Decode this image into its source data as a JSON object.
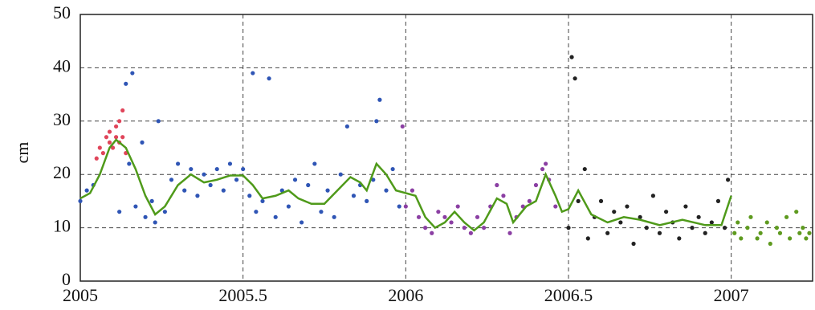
{
  "chart_data": {
    "type": "scatter",
    "ylabel": "cm",
    "xlim": [
      2005,
      2007.25
    ],
    "ylim": [
      0,
      50
    ],
    "xticks": [
      2005,
      2005.5,
      2006,
      2006.5,
      2007
    ],
    "yticks": [
      0,
      10,
      20,
      30,
      40,
      50
    ],
    "grid": true,
    "series": [
      {
        "color": "#e0455a",
        "mode": "markers",
        "x": [
          2005.05,
          2005.06,
          2005.07,
          2005.08,
          2005.09,
          2005.09,
          2005.1,
          2005.11,
          2005.11,
          2005.12,
          2005.12,
          2005.13,
          2005.13,
          2005.14
        ],
        "values": [
          23,
          25,
          24,
          27,
          26,
          28,
          25,
          27,
          29,
          30,
          26,
          32,
          27,
          24
        ]
      },
      {
        "color": "#2f55b5",
        "mode": "markers",
        "x": [
          2005.0,
          2005.02,
          2005.04,
          2005.12,
          2005.14,
          2005.15,
          2005.16,
          2005.17,
          2005.19,
          2005.2,
          2005.22,
          2005.23,
          2005.24,
          2005.26,
          2005.28,
          2005.3,
          2005.32,
          2005.34,
          2005.36,
          2005.38,
          2005.4,
          2005.42,
          2005.44,
          2005.46,
          2005.48,
          2005.5,
          2005.52,
          2005.53,
          2005.54,
          2005.56,
          2005.58,
          2005.6,
          2005.62,
          2005.64,
          2005.66,
          2005.68,
          2005.7,
          2005.72,
          2005.74,
          2005.76,
          2005.78,
          2005.8,
          2005.82,
          2005.84,
          2005.86,
          2005.88,
          2005.9,
          2005.91,
          2005.92,
          2005.94,
          2005.96,
          2005.98
        ],
        "values": [
          15,
          17,
          18,
          13,
          37,
          22,
          39,
          14,
          26,
          12,
          15,
          11,
          30,
          13,
          19,
          22,
          17,
          21,
          16,
          20,
          18,
          21,
          17,
          22,
          19,
          21,
          16,
          39,
          13,
          15,
          38,
          12,
          17,
          14,
          19,
          11,
          18,
          22,
          13,
          17,
          12,
          20,
          29,
          16,
          18,
          15,
          19,
          30,
          34,
          17,
          21,
          14
        ]
      },
      {
        "color": "#8b3fa3",
        "mode": "markers",
        "x": [
          2005.99,
          2006.0,
          2006.02,
          2006.04,
          2006.06,
          2006.08,
          2006.1,
          2006.12,
          2006.14,
          2006.16,
          2006.18,
          2006.2,
          2006.22,
          2006.24,
          2006.26,
          2006.28,
          2006.3,
          2006.32,
          2006.34,
          2006.36,
          2006.38,
          2006.4,
          2006.42,
          2006.43,
          2006.44,
          2006.46
        ],
        "values": [
          29,
          14,
          17,
          12,
          10,
          9,
          13,
          12,
          11,
          14,
          10,
          9,
          12,
          10,
          14,
          18,
          16,
          9,
          12,
          14,
          15,
          18,
          21,
          22,
          19,
          14
        ]
      },
      {
        "color": "#222222",
        "mode": "markers",
        "x": [
          2006.5,
          2006.51,
          2006.52,
          2006.53,
          2006.55,
          2006.56,
          2006.58,
          2006.6,
          2006.62,
          2006.64,
          2006.66,
          2006.68,
          2006.7,
          2006.72,
          2006.74,
          2006.76,
          2006.78,
          2006.8,
          2006.82,
          2006.84,
          2006.86,
          2006.88,
          2006.9,
          2006.92,
          2006.94,
          2006.96,
          2006.98,
          2006.99
        ],
        "values": [
          10,
          42,
          38,
          15,
          21,
          8,
          12,
          15,
          9,
          13,
          11,
          14,
          7,
          12,
          10,
          16,
          9,
          13,
          11,
          8,
          14,
          10,
          12,
          9,
          11,
          15,
          10,
          19
        ]
      },
      {
        "color": "#5e9a1f",
        "mode": "markers",
        "x": [
          2007.01,
          2007.02,
          2007.03,
          2007.05,
          2007.06,
          2007.08,
          2007.09,
          2007.11,
          2007.12,
          2007.14,
          2007.15,
          2007.17,
          2007.18,
          2007.2,
          2007.21,
          2007.22,
          2007.23,
          2007.24
        ],
        "values": [
          9,
          11,
          8,
          10,
          12,
          8,
          9,
          11,
          7,
          10,
          9,
          12,
          8,
          13,
          9,
          10,
          8,
          9
        ]
      },
      {
        "color": "#4f9a1a",
        "mode": "line",
        "x": [
          2005.0,
          2005.03,
          2005.06,
          2005.09,
          2005.11,
          2005.14,
          2005.17,
          2005.2,
          2005.23,
          2005.26,
          2005.3,
          2005.34,
          2005.38,
          2005.42,
          2005.46,
          2005.5,
          2005.53,
          2005.56,
          2005.6,
          2005.64,
          2005.67,
          2005.71,
          2005.75,
          2005.79,
          2005.83,
          2005.86,
          2005.88,
          2005.91,
          2005.94,
          2005.97,
          2006.0,
          2006.03,
          2006.06,
          2006.09,
          2006.12,
          2006.15,
          2006.18,
          2006.21,
          2006.24,
          2006.28,
          2006.31,
          2006.33,
          2006.37,
          2006.4,
          2006.43,
          2006.46,
          2006.48,
          2006.5,
          2006.53,
          2006.57,
          2006.62,
          2006.67,
          2006.72,
          2006.78,
          2006.85,
          2006.92,
          2006.97,
          2007.0
        ],
        "values": [
          15.5,
          16.5,
          20,
          25,
          26.5,
          25,
          21,
          16,
          12.5,
          14,
          18,
          20,
          18.5,
          19,
          19.8,
          19.8,
          18,
          15.5,
          16,
          17,
          15.5,
          14.5,
          14.5,
          17,
          19.5,
          18.5,
          17,
          22,
          20,
          17,
          16.5,
          16,
          12,
          10,
          11,
          13,
          11,
          9.5,
          11,
          15.5,
          14.5,
          11,
          14,
          15,
          20,
          16,
          13,
          13.5,
          17,
          12.5,
          11,
          12,
          11.5,
          10.5,
          11.5,
          10.5,
          10.5,
          16
        ]
      }
    ]
  }
}
